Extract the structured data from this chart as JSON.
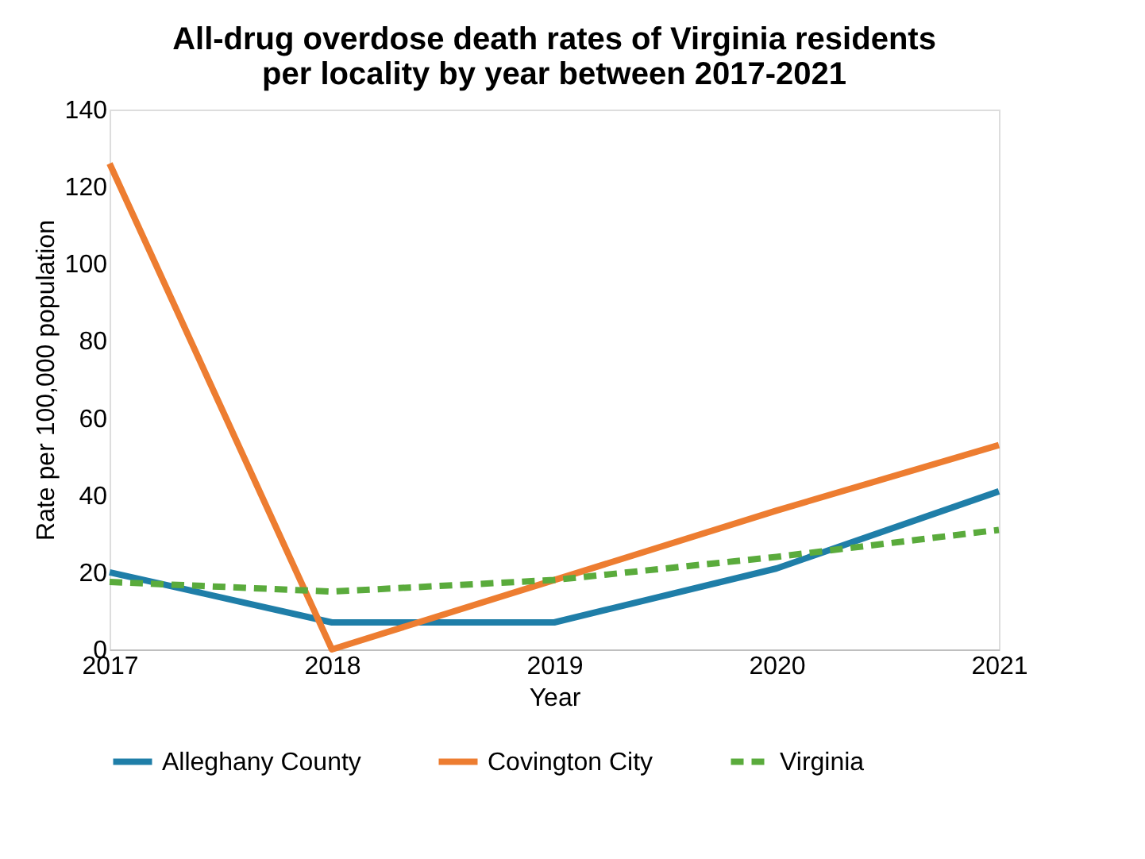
{
  "chart_data": {
    "type": "line",
    "title": "All-drug overdose death rates of Virginia residents\nper locality by year between 2017-2021",
    "xlabel": "Year",
    "ylabel": "Rate per 100,000 population",
    "x": [
      2017,
      2018,
      2019,
      2020,
      2021
    ],
    "xlim": [
      2017,
      2021
    ],
    "xticks": [
      2017,
      2018,
      2019,
      2020,
      2021
    ],
    "ylim": [
      0,
      140
    ],
    "yticks": [
      0,
      20,
      40,
      60,
      80,
      100,
      120,
      140
    ],
    "grid": false,
    "legend": "bottom",
    "marker": "none",
    "series": [
      {
        "name": "Alleghany County",
        "color": "#1f7ea8",
        "line_style": "solid",
        "values": [
          20,
          7,
          7,
          21,
          41
        ]
      },
      {
        "name": "Covington City",
        "color": "#ed7d31",
        "line_style": "solid",
        "values": [
          126,
          0,
          18,
          36,
          53
        ]
      },
      {
        "name": "Virginia",
        "color": "#5aab3c",
        "line_style": "dashed",
        "values": [
          17.5,
          15,
          18,
          24,
          31
        ]
      }
    ]
  }
}
